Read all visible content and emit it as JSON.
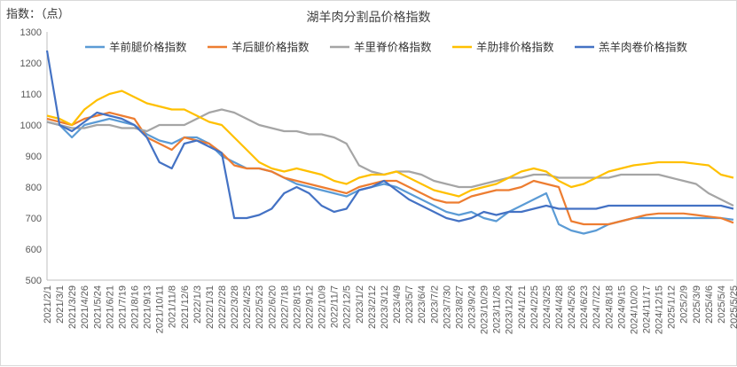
{
  "chart_data": {
    "type": "line",
    "title": "湖羊肉分割品价格指数",
    "unit_label": "指数：（点）",
    "ylim": [
      500,
      1300
    ],
    "yticks": [
      500,
      600,
      700,
      800,
      900,
      1000,
      1100,
      1200,
      1300
    ],
    "grid": false,
    "legend_position": "top",
    "categories": [
      "2021/2/1",
      "2021/3/1",
      "2021/3/29",
      "2021/4/26",
      "2021/5/24",
      "2021/6/21",
      "2021/7/19",
      "2021/8/16",
      "2021/9/13",
      "2021/10/11",
      "2021/11/8",
      "2021/12/6",
      "2022/1/3",
      "2022/1/31",
      "2022/2/28",
      "2022/3/28",
      "2022/4/25",
      "2022/5/23",
      "2022/6/20",
      "2022/7/18",
      "2022/8/15",
      "2022/9/12",
      "2022/10/9",
      "2022/11/7",
      "2022/12/5",
      "2023/1/2",
      "2023/2/12",
      "2023/3/12",
      "2023/4/9",
      "2023/5/7",
      "2023/6/4",
      "2023/7/2",
      "2023/7/30",
      "2023/8/27",
      "2023/9/24",
      "2023/10/29",
      "2023/11/26",
      "2023/12/24",
      "2024/1/21",
      "2024/2/25",
      "2024/3/25",
      "2024/4/28",
      "2024/5/26",
      "2024/6/23",
      "2024/7/22",
      "2024/8/18",
      "2024/9/15",
      "2024/10/20",
      "2024/11/17",
      "2024/12/15",
      "2025/1/12",
      "2025/2/9",
      "2025/3/9",
      "2025/4/6",
      "2025/5/4",
      "2025/5/25"
    ],
    "series": [
      {
        "name": "羊前腿价格指数",
        "color": "#5b9bd5",
        "values": [
          1010,
          1000,
          960,
          1000,
          1010,
          1020,
          1010,
          1000,
          970,
          950,
          940,
          960,
          960,
          940,
          900,
          880,
          860,
          860,
          850,
          830,
          810,
          800,
          790,
          780,
          770,
          790,
          800,
          810,
          800,
          780,
          760,
          740,
          720,
          710,
          720,
          700,
          690,
          720,
          740,
          760,
          780,
          680,
          660,
          650,
          660,
          680,
          690,
          700,
          700,
          700,
          700,
          700,
          700,
          700,
          700,
          695
        ]
      },
      {
        "name": "羊后腿价格指数",
        "color": "#ed7d31",
        "values": [
          1020,
          1010,
          1000,
          1020,
          1030,
          1040,
          1030,
          1020,
          960,
          940,
          920,
          960,
          950,
          940,
          910,
          870,
          860,
          860,
          850,
          830,
          820,
          810,
          800,
          790,
          780,
          800,
          810,
          820,
          820,
          800,
          780,
          760,
          750,
          750,
          770,
          780,
          790,
          790,
          800,
          820,
          810,
          800,
          690,
          680,
          680,
          680,
          690,
          700,
          710,
          715,
          715,
          715,
          710,
          705,
          700,
          685
        ]
      },
      {
        "name": "羊里脊价格指数",
        "color": "#a5a5a5",
        "values": [
          1010,
          1000,
          990,
          990,
          1000,
          1000,
          990,
          990,
          980,
          1000,
          1000,
          1000,
          1020,
          1040,
          1050,
          1040,
          1020,
          1000,
          990,
          980,
          980,
          970,
          970,
          960,
          940,
          870,
          850,
          840,
          850,
          850,
          840,
          820,
          810,
          800,
          800,
          810,
          820,
          830,
          830,
          840,
          840,
          830,
          830,
          830,
          830,
          830,
          840,
          840,
          840,
          840,
          830,
          820,
          810,
          780,
          760,
          740
        ]
      },
      {
        "name": "羊肋排价格指数",
        "color": "#ffc000",
        "values": [
          1030,
          1020,
          1000,
          1050,
          1080,
          1100,
          1110,
          1090,
          1070,
          1060,
          1050,
          1050,
          1030,
          1010,
          1000,
          960,
          920,
          880,
          860,
          850,
          860,
          850,
          840,
          820,
          810,
          830,
          840,
          840,
          850,
          830,
          810,
          790,
          780,
          770,
          790,
          800,
          810,
          830,
          850,
          860,
          850,
          820,
          800,
          810,
          830,
          850,
          860,
          870,
          875,
          880,
          880,
          880,
          875,
          870,
          840,
          830
        ]
      },
      {
        "name": "羔羊肉卷价格指数",
        "color": "#4472c4",
        "values": [
          1240,
          1000,
          980,
          1010,
          1040,
          1030,
          1020,
          1000,
          960,
          880,
          860,
          940,
          950,
          930,
          910,
          700,
          700,
          710,
          730,
          780,
          800,
          780,
          740,
          720,
          730,
          790,
          800,
          820,
          790,
          760,
          740,
          720,
          700,
          690,
          700,
          720,
          710,
          720,
          720,
          730,
          740,
          730,
          730,
          730,
          730,
          740,
          740,
          740,
          740,
          740,
          740,
          740,
          740,
          740,
          740,
          730
        ]
      }
    ]
  }
}
